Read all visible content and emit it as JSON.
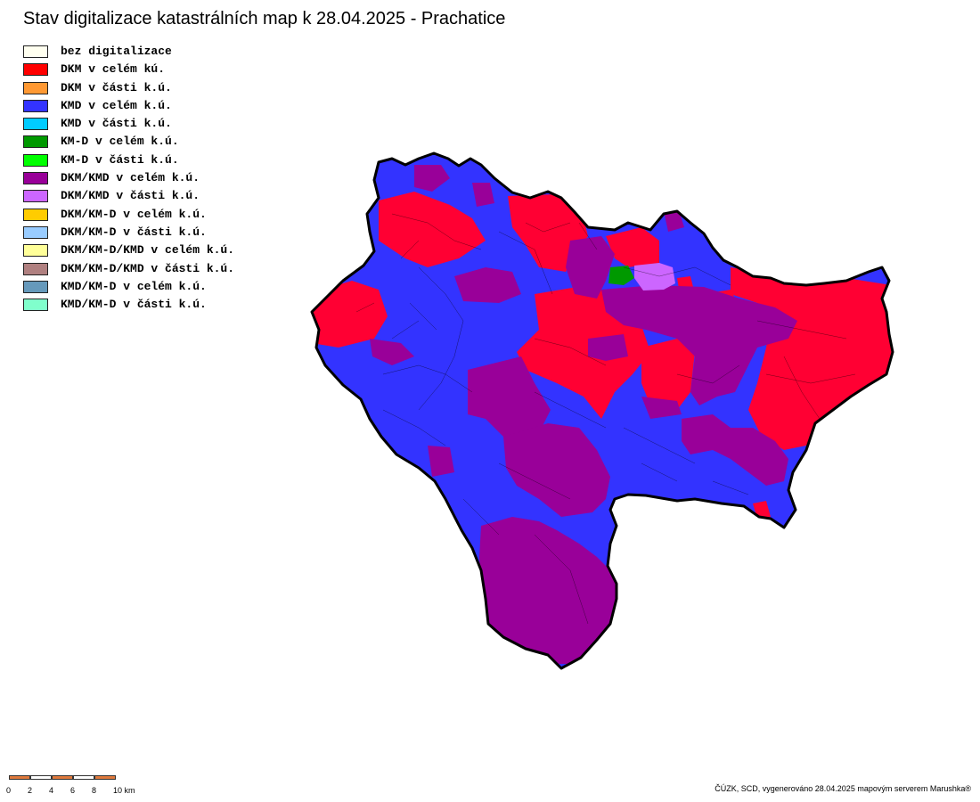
{
  "title": "Stav digitalizace katastrálních map k 28.04.2025 - Prachatice",
  "legend": [
    {
      "label": "bez digitalizace",
      "color": "#fffff0"
    },
    {
      "label": "DKM v celém kú.",
      "color": "#ff0000"
    },
    {
      "label": "DKM v části k.ú.",
      "color": "#ff9933"
    },
    {
      "label": "KMD v celém k.ú.",
      "color": "#3333ff"
    },
    {
      "label": "KMD v části k.ú.",
      "color": "#00ccff"
    },
    {
      "label": "KM-D v celém k.ú.",
      "color": "#009900"
    },
    {
      "label": "KM-D v části k.ú.",
      "color": "#00ff00"
    },
    {
      "label": "DKM/KMD v celém k.ú.",
      "color": "#990099"
    },
    {
      "label": "DKM/KMD v části k.ú.",
      "color": "#cc66ff"
    },
    {
      "label": "DKM/KM-D v celém k.ú.",
      "color": "#ffcc00"
    },
    {
      "label": "DKM/KM-D v části k.ú.",
      "color": "#99ccff"
    },
    {
      "label": "DKM/KM-D/KMD v celém k.ú.",
      "color": "#ffff99"
    },
    {
      "label": "DKM/KM-D/KMD v části k.ú.",
      "color": "#b08080"
    },
    {
      "label": "KMD/KM-D v celém k.ú.",
      "color": "#6699bb"
    },
    {
      "label": "KMD/KM-D v části k.ú.",
      "color": "#80ffcc"
    }
  ],
  "scale": {
    "labels": [
      "0",
      "2",
      "4",
      "6",
      "8",
      "10 km"
    ],
    "colors": [
      "#e07a3c",
      "#ffffff",
      "#e07a3c",
      "#ffffff",
      "#e07a3c"
    ]
  },
  "credit": "ČÚZK, SCD, vygenerováno 28.04.2025 mapovým serverem Marushka®"
}
